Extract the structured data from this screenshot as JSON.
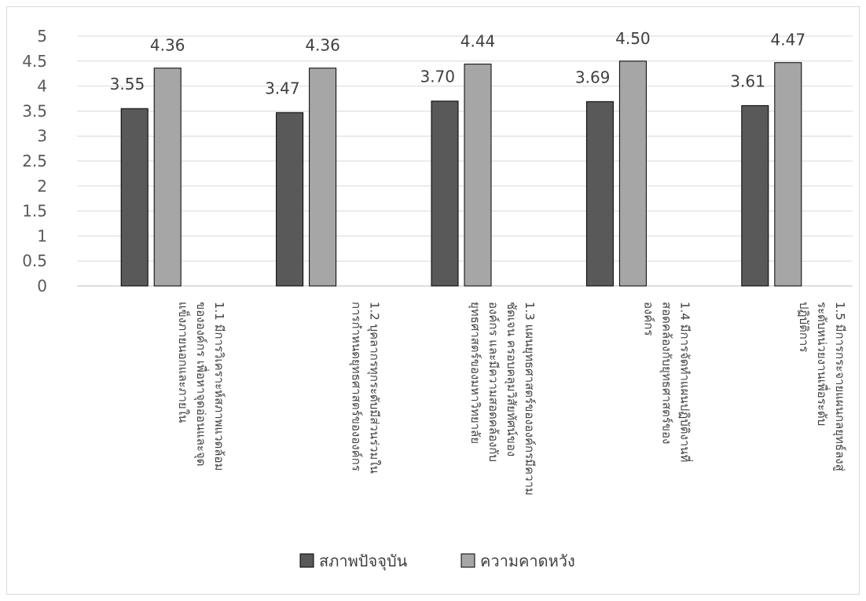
{
  "chart_data": {
    "type": "bar",
    "categories": [
      [
        "1.1 มีการวิเคราะห์สภาพแวดล้อม",
        "ขององค์กร เพื่อหาจุดอ่อนและจุด",
        "แข็งภายนอกและภายใน"
      ],
      [
        "1.2 บุคลากรทุกระดับมีส่วนร่วมใน",
        "การกำหนดยุทธศาสตร์ขององค์กร"
      ],
      [
        "1.3 แผนยุทธศาสตร์ขององค์กรมีความ",
        "ชัดเจน ครอบคลุมวิสัยทัศน์ของ",
        "องค์กร และมีความสอดคล้องกับ",
        "ยุทธศาสตร์ของมหาวิทยาลัย"
      ],
      [
        "1.4 มีการจัดทำแผนปฏิบัติงานที่",
        "สอดคล้องกับยุทธศาสตร์ของ",
        "องค์กร"
      ],
      [
        "1.5 มีการกระจายแผนกลยุทธ์ลงสู่",
        "ระดับหน่วยงานเพื่อระดับ",
        "ปฏิบัติการ"
      ]
    ],
    "series": [
      {
        "name": "สภาพปัจจุบัน",
        "values": [
          3.55,
          3.47,
          3.7,
          3.69,
          3.61
        ],
        "color": "#595959"
      },
      {
        "name": "ความคาดหวัง",
        "values": [
          4.36,
          4.36,
          4.44,
          4.5,
          4.47
        ],
        "color": "#a6a6a6"
      }
    ],
    "data_labels": [
      [
        "3.55",
        "3.47",
        "3.70",
        "3.69",
        "3.61"
      ],
      [
        "4.36",
        "4.36",
        "4.44",
        "4.50",
        "4.47"
      ]
    ],
    "yticks": [
      "0",
      "0.5",
      "1",
      "1.5",
      "2",
      "2.5",
      "3",
      "3.5",
      "4",
      "4.5",
      "5"
    ],
    "ylim": [
      0,
      5
    ],
    "grid": true,
    "legend_position": "bottom",
    "title": "",
    "xlabel": "",
    "ylabel": ""
  }
}
